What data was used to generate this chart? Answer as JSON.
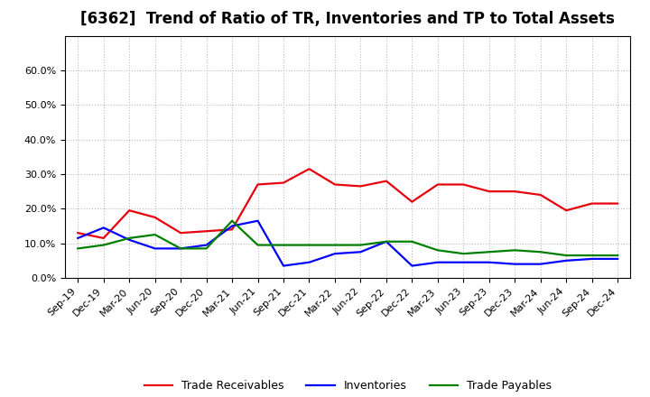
{
  "title": "[6362]  Trend of Ratio of TR, Inventories and TP to Total Assets",
  "x_labels": [
    "Sep-19",
    "Dec-19",
    "Mar-20",
    "Jun-20",
    "Sep-20",
    "Dec-20",
    "Mar-21",
    "Jun-21",
    "Sep-21",
    "Dec-21",
    "Mar-22",
    "Jun-22",
    "Sep-22",
    "Dec-22",
    "Mar-23",
    "Jun-23",
    "Sep-23",
    "Dec-23",
    "Mar-24",
    "Jun-24",
    "Sep-24",
    "Dec-24"
  ],
  "trade_receivables": [
    13.0,
    11.5,
    19.5,
    17.5,
    13.0,
    13.5,
    14.0,
    27.0,
    27.5,
    31.5,
    27.0,
    26.5,
    28.0,
    22.0,
    27.0,
    27.0,
    25.0,
    25.0,
    24.0,
    19.5,
    21.5,
    21.5
  ],
  "inventories": [
    11.5,
    14.5,
    11.0,
    8.5,
    8.5,
    9.5,
    15.0,
    16.5,
    3.5,
    4.5,
    7.0,
    7.5,
    10.5,
    3.5,
    4.5,
    4.5,
    4.5,
    4.0,
    4.0,
    5.0,
    5.5,
    5.5
  ],
  "trade_payables": [
    8.5,
    9.5,
    11.5,
    12.5,
    8.5,
    8.5,
    16.5,
    9.5,
    9.5,
    9.5,
    9.5,
    9.5,
    10.5,
    10.5,
    8.0,
    7.0,
    7.5,
    8.0,
    7.5,
    6.5,
    6.5,
    6.5
  ],
  "ylim": [
    0,
    70
  ],
  "yticks": [
    0,
    10,
    20,
    30,
    40,
    50,
    60
  ],
  "ytick_labels": [
    "0.0%",
    "10.0%",
    "20.0%",
    "30.0%",
    "40.0%",
    "50.0%",
    "60.0%"
  ],
  "tr_color": "#e8000d",
  "inv_color": "#0000ff",
  "tp_color": "#008000",
  "legend_labels": [
    "Trade Receivables",
    "Inventories",
    "Trade Payables"
  ],
  "background_color": "#ffffff",
  "grid_color": "#bbbbbb",
  "title_fontsize": 12,
  "tick_fontsize": 8,
  "legend_fontsize": 9,
  "linewidth": 1.6
}
